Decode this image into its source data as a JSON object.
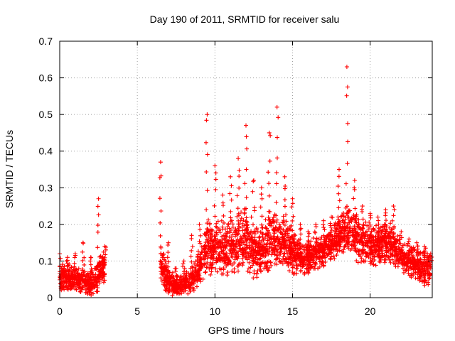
{
  "chart_data": {
    "type": "scatter",
    "title": "Day 190 of 2011, SRMTID for receiver salu",
    "xlabel": "GPS time / hours",
    "ylabel": "SRMTID / TECUs",
    "xlim": [
      0,
      24
    ],
    "ylim": [
      0,
      0.7
    ],
    "x_ticks": [
      0,
      5,
      10,
      15,
      20
    ],
    "x_tick_labels": [
      "0",
      "5",
      "10",
      "15",
      "20"
    ],
    "y_ticks": [
      0,
      0.1,
      0.2,
      0.3,
      0.4,
      0.5,
      0.6,
      0.7
    ],
    "y_tick_labels": [
      "0",
      "0.1",
      "0.2",
      "0.3",
      "0.4",
      "0.5",
      "0.6",
      "0.7"
    ],
    "grid": true,
    "marker": "plus",
    "series_color": "#ff0000",
    "series": [
      {
        "name": "SRMTID",
        "envelope": [
          {
            "x": 0.0,
            "base": 0.06,
            "spread": 0.045,
            "peak": 0.12
          },
          {
            "x": 0.5,
            "base": 0.055,
            "spread": 0.04,
            "peak": 0.11
          },
          {
            "x": 1.0,
            "base": 0.05,
            "spread": 0.04,
            "peak": 0.12
          },
          {
            "x": 1.5,
            "base": 0.045,
            "spread": 0.04,
            "peak": 0.15
          },
          {
            "x": 2.0,
            "base": 0.04,
            "spread": 0.04,
            "peak": 0.11
          },
          {
            "x": 2.5,
            "base": 0.06,
            "spread": 0.05,
            "peak": 0.27
          },
          {
            "x": 2.9,
            "base": 0.09,
            "spread": 0.05,
            "peak": 0.14
          },
          {
            "x": 6.5,
            "base": 0.1,
            "spread": 0.06,
            "peak": 0.37
          },
          {
            "x": 7.0,
            "base": 0.04,
            "spread": 0.04,
            "peak": 0.15
          },
          {
            "x": 7.5,
            "base": 0.03,
            "spread": 0.03,
            "peak": 0.08
          },
          {
            "x": 8.0,
            "base": 0.035,
            "spread": 0.035,
            "peak": 0.1
          },
          {
            "x": 8.5,
            "base": 0.05,
            "spread": 0.04,
            "peak": 0.17
          },
          {
            "x": 9.0,
            "base": 0.08,
            "spread": 0.05,
            "peak": 0.2
          },
          {
            "x": 9.5,
            "base": 0.14,
            "spread": 0.08,
            "peak": 0.5
          },
          {
            "x": 10.0,
            "base": 0.14,
            "spread": 0.08,
            "peak": 0.36
          },
          {
            "x": 10.5,
            "base": 0.13,
            "spread": 0.08,
            "peak": 0.28
          },
          {
            "x": 11.0,
            "base": 0.14,
            "spread": 0.08,
            "peak": 0.33
          },
          {
            "x": 11.5,
            "base": 0.15,
            "spread": 0.09,
            "peak": 0.38
          },
          {
            "x": 12.0,
            "base": 0.16,
            "spread": 0.09,
            "peak": 0.47
          },
          {
            "x": 12.5,
            "base": 0.13,
            "spread": 0.08,
            "peak": 0.32
          },
          {
            "x": 13.0,
            "base": 0.13,
            "spread": 0.08,
            "peak": 0.3
          },
          {
            "x": 13.5,
            "base": 0.16,
            "spread": 0.09,
            "peak": 0.45
          },
          {
            "x": 14.0,
            "base": 0.16,
            "spread": 0.09,
            "peak": 0.52
          },
          {
            "x": 14.5,
            "base": 0.15,
            "spread": 0.08,
            "peak": 0.33
          },
          {
            "x": 15.0,
            "base": 0.13,
            "spread": 0.07,
            "peak": 0.27
          },
          {
            "x": 15.5,
            "base": 0.11,
            "spread": 0.05,
            "peak": 0.2
          },
          {
            "x": 16.0,
            "base": 0.11,
            "spread": 0.05,
            "peak": 0.18
          },
          {
            "x": 16.5,
            "base": 0.12,
            "spread": 0.05,
            "peak": 0.2
          },
          {
            "x": 17.0,
            "base": 0.13,
            "spread": 0.05,
            "peak": 0.21
          },
          {
            "x": 17.5,
            "base": 0.15,
            "spread": 0.05,
            "peak": 0.22
          },
          {
            "x": 18.0,
            "base": 0.17,
            "spread": 0.06,
            "peak": 0.35
          },
          {
            "x": 18.5,
            "base": 0.19,
            "spread": 0.07,
            "peak": 0.63
          },
          {
            "x": 19.0,
            "base": 0.17,
            "spread": 0.07,
            "peak": 0.32
          },
          {
            "x": 19.5,
            "base": 0.15,
            "spread": 0.07,
            "peak": 0.25
          },
          {
            "x": 20.0,
            "base": 0.15,
            "spread": 0.07,
            "peak": 0.23
          },
          {
            "x": 20.5,
            "base": 0.14,
            "spread": 0.06,
            "peak": 0.22
          },
          {
            "x": 21.0,
            "base": 0.15,
            "spread": 0.06,
            "peak": 0.24
          },
          {
            "x": 21.5,
            "base": 0.14,
            "spread": 0.06,
            "peak": 0.25
          },
          {
            "x": 22.0,
            "base": 0.11,
            "spread": 0.05,
            "peak": 0.18
          },
          {
            "x": 22.5,
            "base": 0.1,
            "spread": 0.05,
            "peak": 0.16
          },
          {
            "x": 23.0,
            "base": 0.09,
            "spread": 0.05,
            "peak": 0.15
          },
          {
            "x": 23.5,
            "base": 0.08,
            "spread": 0.05,
            "peak": 0.14
          },
          {
            "x": 23.9,
            "base": 0.08,
            "spread": 0.05,
            "peak": 0.12
          }
        ],
        "segments": [
          [
            0.0,
            2.9
          ],
          [
            6.5,
            23.9
          ]
        ],
        "points_per_hour": 150
      }
    ]
  }
}
